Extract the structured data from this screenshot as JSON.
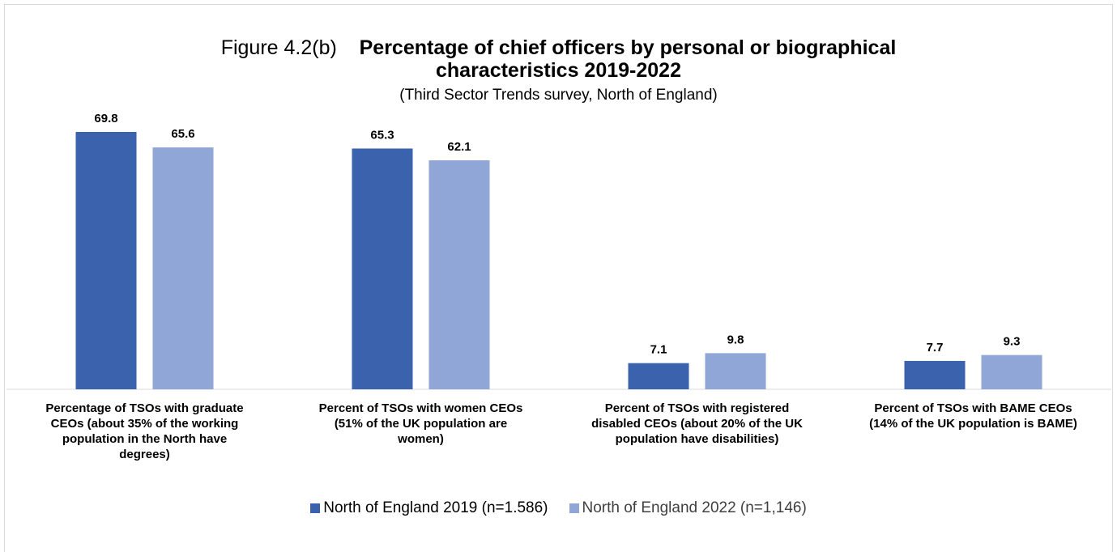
{
  "title": {
    "prefix": "Figure 4.2(b)",
    "line1": "Percentage of chief officers by personal or biographical",
    "line2": "characteristics 2019-2022",
    "subtitle": "(Third Sector Trends survey, North of England)"
  },
  "colors": {
    "series_2019": "#3a62ad",
    "series_2022": "#8fa6d6",
    "axis": "#d9d9d9"
  },
  "chart_data": {
    "type": "bar",
    "title": "Percentage of chief officers by personal or biographical characteristics 2019-2022",
    "subtitle": "(Third Sector Trends survey, North of England)",
    "categories": [
      "Percentage of TSOs with graduate CEOs (about 35% of the working population in the North have degrees)",
      "Percent of TSOs with women CEOs (51% of the UK population are women)",
      "Percent of TSOs with registered disabled CEOs (about 20% of the UK population have disabilities)",
      "Percent of TSOs with BAME CEOs (14% of the UK population is BAME)"
    ],
    "category_lines": [
      [
        "Percentage of TSOs with graduate",
        "CEOs (about 35% of the working",
        "population in the North have",
        "degrees)"
      ],
      [
        "Percent of TSOs with women CEOs",
        "(51% of the UK population are",
        "women)"
      ],
      [
        "Percent of TSOs with registered",
        "disabled CEOs (about 20% of the UK",
        "population have disabilities)"
      ],
      [
        "Percent of TSOs with BAME CEOs",
        "(14% of the UK population is BAME)"
      ]
    ],
    "series": [
      {
        "name": "North of England 2019 (n=1.586)",
        "values": [
          69.8,
          65.3,
          7.1,
          7.7
        ],
        "labels": [
          "69.8",
          "65.3",
          "7.1",
          "7.7"
        ]
      },
      {
        "name": "North of England 2022 (n=1,146)",
        "values": [
          65.6,
          62.1,
          9.8,
          9.3
        ],
        "labels": [
          "65.6",
          "62.1",
          "9.8",
          "9.3"
        ]
      }
    ],
    "ylim": [
      0,
      69.8
    ],
    "grid": false,
    "legend_position": "bottom"
  }
}
